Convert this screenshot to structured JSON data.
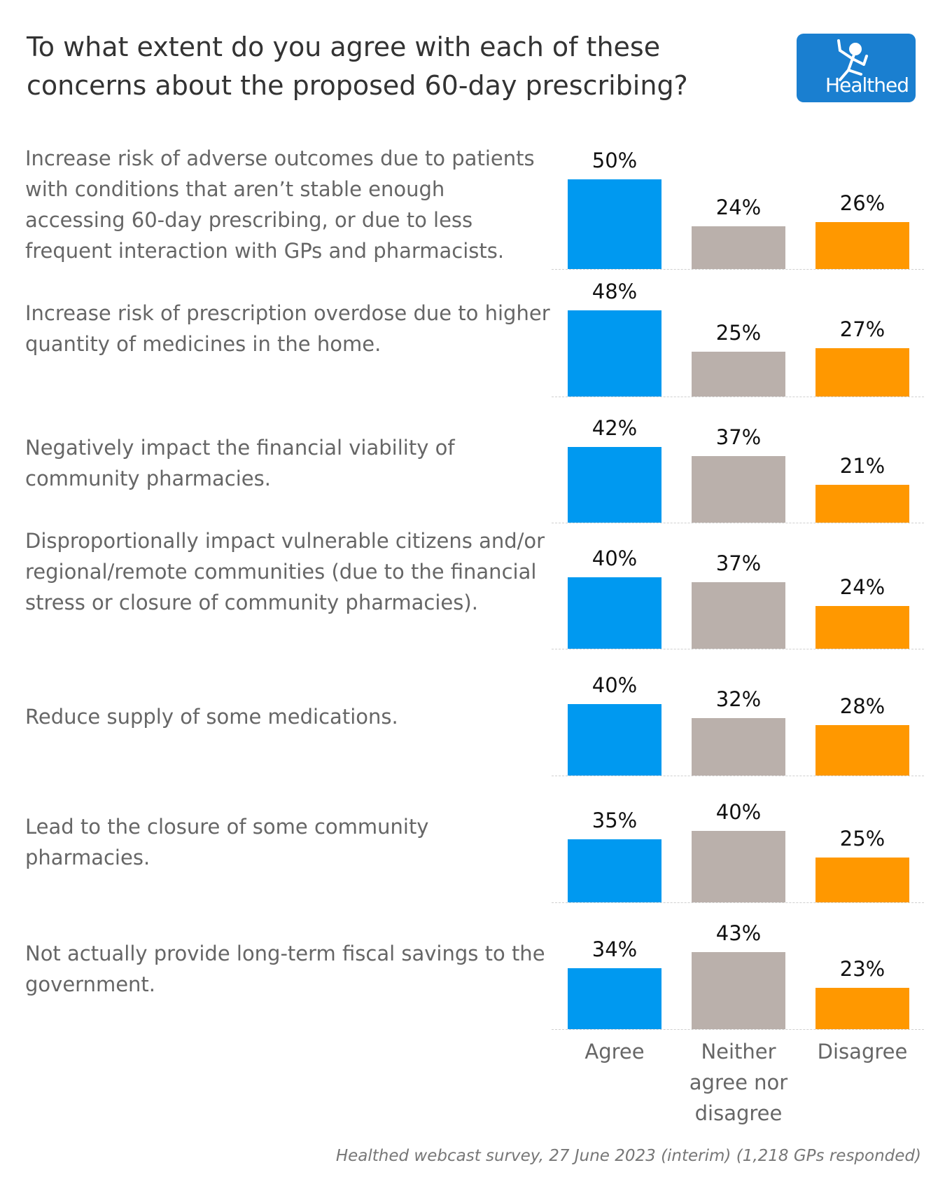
{
  "title": "To what extent do you agree with each of these concerns about the proposed 60-day prescribing?",
  "logo": {
    "text": "Healthed",
    "icon": "running-figure-icon",
    "background": "#1a7fd0"
  },
  "source": "Healthed webcast survey, 27 June 2023 (interim) (1,218 GPs responded)",
  "colors": {
    "agree": "#0099f0",
    "neither": "#bab0ab",
    "disagree": "#ff9800"
  },
  "chart_data": {
    "type": "bar",
    "title": "To what extent do you agree with each of these concerns about the proposed 60-day prescribing?",
    "layout": "small-multiples, one row per concern",
    "categories": [
      "Agree",
      "Neither agree nor disagree",
      "Disagree"
    ],
    "xlabel": "",
    "ylabel": "",
    "ylim": [
      0,
      50
    ],
    "unit": "%",
    "grid": false,
    "rows": [
      {
        "concern": "Increase risk of adverse outcomes due to patients with conditions that aren’t stable enough accessing 60-day prescribing, or due to less frequent interaction with GPs and pharmacists.",
        "values": [
          50,
          24,
          26
        ]
      },
      {
        "concern": "Increase risk of prescription overdose due to higher quantity of medicines in the home.",
        "values": [
          48,
          25,
          27
        ]
      },
      {
        "concern": "Negatively impact the financial viability of community pharmacies.",
        "values": [
          42,
          37,
          21
        ]
      },
      {
        "concern": "Disproportionally impact vulnerable citizens and/or regional/remote communities (due to the financial stress or closure of community pharmacies).",
        "values": [
          40,
          37,
          24
        ]
      },
      {
        "concern": "Reduce supply of some medications.",
        "values": [
          40,
          32,
          28
        ]
      },
      {
        "concern": "Lead to the closure of some community pharmacies.",
        "values": [
          35,
          40,
          25
        ]
      },
      {
        "concern": "Not actually provide long-term fiscal savings to the government.",
        "values": [
          34,
          43,
          23
        ]
      }
    ],
    "x_axis_labels": [
      "Agree",
      "Neither agree nor disagree",
      "Disagree"
    ]
  }
}
